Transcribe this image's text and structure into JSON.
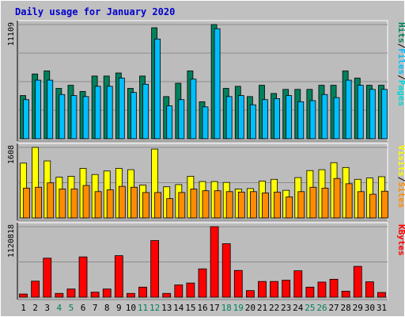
{
  "colors": {
    "background": "#c0c0c0",
    "plot_bg": "#bcbcbc",
    "grid": "#8c8c8c",
    "title": "#0000cc",
    "hits": "#00805c",
    "files": "#00bfff",
    "pages": "#00d8d8",
    "visits": "#ffff00",
    "sites": "#ff8c00",
    "kbytes": "#ff0000",
    "weekend_day": "#00805c",
    "weekday": "#000000"
  },
  "chart_data": {
    "type": "bar",
    "title": "Daily usage for January 2020",
    "categories": [
      "1",
      "2",
      "3",
      "4",
      "5",
      "6",
      "7",
      "8",
      "9",
      "10",
      "11",
      "12",
      "13",
      "14",
      "15",
      "16",
      "17",
      "18",
      "19",
      "20",
      "21",
      "22",
      "23",
      "24",
      "25",
      "26",
      "27",
      "28",
      "29",
      "30",
      "31"
    ],
    "weekend_days": [
      "4",
      "5",
      "11",
      "12",
      "18",
      "19",
      "25",
      "26"
    ],
    "panels": [
      {
        "max_label": "11109",
        "ymax": 11109,
        "legend": [
          {
            "text": "Hits",
            "color": "#00805c"
          },
          {
            "text": "/",
            "color": "#000000"
          },
          {
            "text": "Files",
            "color": "#00bfff"
          },
          {
            "text": "/",
            "color": "#000000"
          },
          {
            "text": "Pages",
            "color": "#00d8d8"
          }
        ],
        "series": [
          {
            "name": "Hits",
            "values": [
              4200,
              6300,
              6600,
              4900,
              5200,
              4600,
              6100,
              6100,
              6400,
              4900,
              6100,
              10800,
              4100,
              5400,
              6600,
              3600,
              11109,
              4900,
              5100,
              4100,
              5200,
              4400,
              4800,
              4800,
              4800,
              5200,
              5200,
              6600,
              5900,
              5200,
              5200
            ]
          },
          {
            "name": "Files",
            "values": [
              3800,
              5700,
              5700,
              4300,
              4200,
              4100,
              5100,
              5100,
              5900,
              4500,
              5300,
              9700,
              3200,
              3800,
              5800,
              3100,
              10700,
              4100,
              4200,
              3300,
              3800,
              3900,
              4200,
              3600,
              3700,
              4300,
              4000,
              5700,
              5200,
              4800,
              4800
            ]
          },
          {
            "name": "Pages",
            "values": [
              0,
              0,
              0,
              0,
              0,
              0,
              0,
              0,
              0,
              0,
              0,
              0,
              0,
              0,
              0,
              0,
              0,
              0,
              0,
              0,
              0,
              0,
              0,
              0,
              0,
              0,
              0,
              0,
              0,
              0,
              0
            ]
          }
        ]
      },
      {
        "max_label": "1608",
        "ymax": 1608,
        "legend": [
          {
            "text": "Visits",
            "color": "#ffff00"
          },
          {
            "text": "/",
            "color": "#000000"
          },
          {
            "text": "Sites",
            "color": "#ff8c00"
          }
        ],
        "series": [
          {
            "name": "Visits",
            "values": [
              1250,
              1608,
              1300,
              930,
              950,
              1130,
              990,
              1070,
              1130,
              1100,
              750,
              1570,
              710,
              760,
              950,
              830,
              830,
              810,
              660,
              670,
              840,
              880,
              630,
              920,
              1080,
              1100,
              1260,
              1150,
              880,
              910,
              940
            ]
          },
          {
            "name": "Sites",
            "values": [
              680,
              700,
              800,
              660,
              660,
              740,
              600,
              640,
              720,
              700,
              580,
              580,
              440,
              580,
              660,
              620,
              620,
              600,
              590,
              600,
              570,
              590,
              480,
              600,
              700,
              680,
              900,
              780,
              600,
              540,
              610
            ]
          }
        ]
      },
      {
        "max_label": "1120818",
        "ymax": 1120818,
        "legend": [
          {
            "text": "KBytes",
            "color": "#ff0000"
          }
        ],
        "series": [
          {
            "name": "KBytes",
            "values": [
              50000,
              255000,
              620000,
              60000,
              130000,
              640000,
              80000,
              130000,
              660000,
              60000,
              160000,
              900000,
              60000,
              195000,
              225000,
              450000,
              1120818,
              850000,
              425000,
              105000,
              250000,
              250000,
              270000,
              420000,
              160000,
              240000,
              285000,
              95000,
              490000,
              245000,
              75000
            ]
          }
        ]
      }
    ]
  }
}
